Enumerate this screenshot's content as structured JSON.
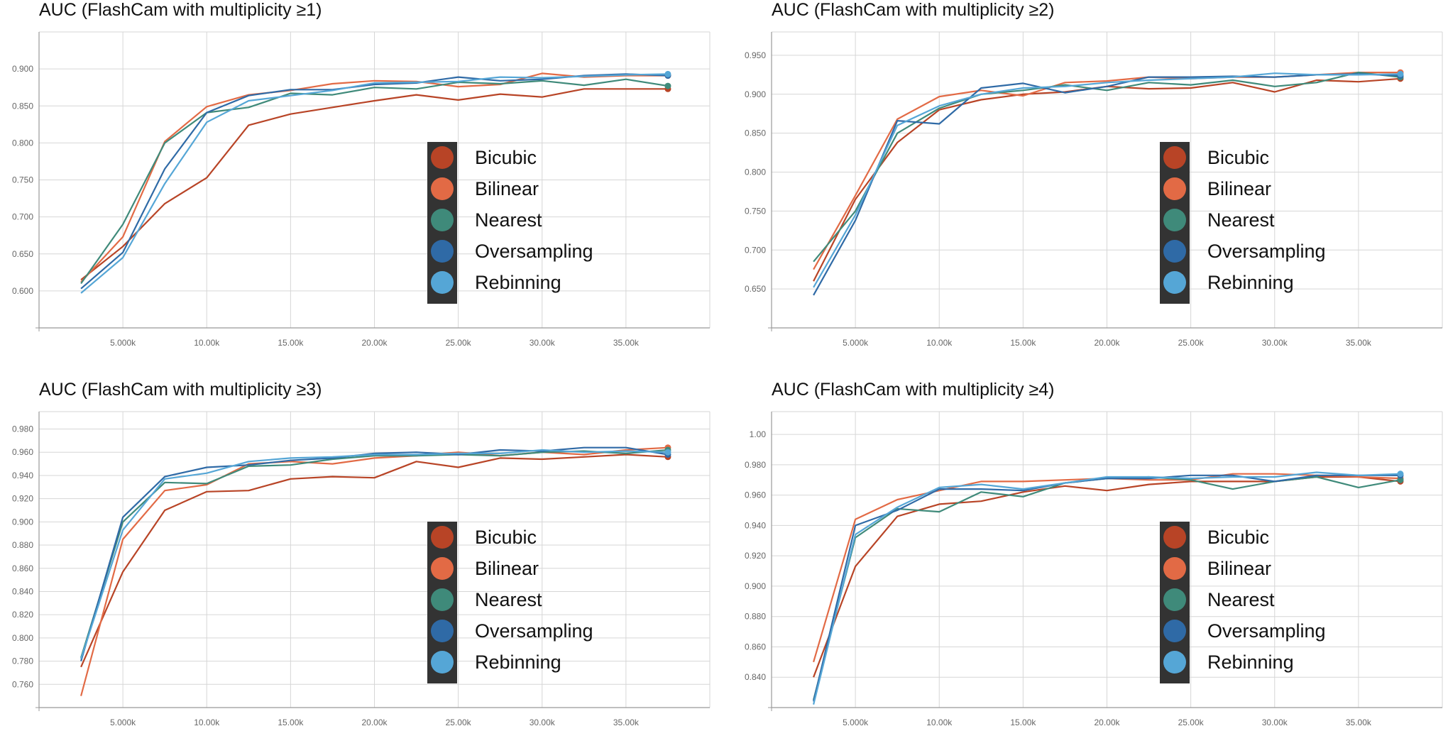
{
  "colors": {
    "Bicubic": "#b84426",
    "Bilinear": "#e26a45",
    "Nearest": "#3f8a7a",
    "Oversampling": "#2f6aa6",
    "Rebinning": "#55a6d6",
    "grid": "#d6d6d6",
    "legend_bg": "#333333"
  },
  "chart_data": [
    {
      "type": "line",
      "title": "AUC (FlashCam with multiplicity ≥1)",
      "xlabel": "",
      "ylabel": "",
      "x": [
        2500,
        5000,
        7500,
        10000,
        12500,
        15000,
        17500,
        20000,
        22500,
        25000,
        27500,
        30000,
        32500,
        35000,
        37500
      ],
      "xlim": [
        0,
        40000
      ],
      "ylim": [
        0.55,
        0.95
      ],
      "x_ticks": [
        5000,
        10000,
        15000,
        20000,
        25000,
        30000,
        35000
      ],
      "x_tick_labels": [
        "5.000k",
        "10.00k",
        "15.00k",
        "20.00k",
        "25.00k",
        "30.00k",
        "35.00k"
      ],
      "y_ticks": [
        0.6,
        0.65,
        0.7,
        0.75,
        0.8,
        0.85,
        0.9
      ],
      "y_tick_labels": [
        "0.600",
        "0.650",
        "0.700",
        "0.750",
        "0.800",
        "0.850",
        "0.900"
      ],
      "grid": true,
      "legend": "center-right",
      "series": [
        {
          "name": "Bicubic",
          "values": [
            0.615,
            0.66,
            0.718,
            0.753,
            0.824,
            0.839,
            0.848,
            0.857,
            0.865,
            0.858,
            0.866,
            0.862,
            0.873,
            0.873,
            0.873
          ]
        },
        {
          "name": "Bilinear",
          "values": [
            0.612,
            0.673,
            0.802,
            0.849,
            0.865,
            0.871,
            0.88,
            0.884,
            0.883,
            0.876,
            0.879,
            0.894,
            0.889,
            0.891,
            0.891
          ]
        },
        {
          "name": "Nearest",
          "values": [
            0.61,
            0.69,
            0.8,
            0.841,
            0.848,
            0.867,
            0.865,
            0.875,
            0.873,
            0.882,
            0.88,
            0.884,
            0.878,
            0.886,
            0.877
          ]
        },
        {
          "name": "Oversampling",
          "values": [
            0.603,
            0.652,
            0.765,
            0.841,
            0.864,
            0.872,
            0.872,
            0.879,
            0.881,
            0.889,
            0.884,
            0.886,
            0.891,
            0.893,
            0.891
          ]
        },
        {
          "name": "Rebinning",
          "values": [
            0.597,
            0.645,
            0.745,
            0.828,
            0.857,
            0.864,
            0.871,
            0.881,
            0.882,
            0.883,
            0.889,
            0.888,
            0.89,
            0.892,
            0.893
          ]
        }
      ]
    },
    {
      "type": "line",
      "title": "AUC (FlashCam with multiplicity ≥2)",
      "xlabel": "",
      "ylabel": "",
      "x": [
        2500,
        5000,
        7500,
        10000,
        12500,
        15000,
        17500,
        20000,
        22500,
        25000,
        27500,
        30000,
        32500,
        35000,
        37500
      ],
      "xlim": [
        0,
        40000
      ],
      "ylim": [
        0.6,
        0.98
      ],
      "x_ticks": [
        5000,
        10000,
        15000,
        20000,
        25000,
        30000,
        35000
      ],
      "x_tick_labels": [
        "5.000k",
        "10.00k",
        "15.00k",
        "20.00k",
        "25.00k",
        "30.00k",
        "35.00k"
      ],
      "y_ticks": [
        0.65,
        0.7,
        0.75,
        0.8,
        0.85,
        0.9,
        0.95
      ],
      "y_tick_labels": [
        "0.650",
        "0.700",
        "0.750",
        "0.800",
        "0.850",
        "0.900",
        "0.950"
      ],
      "grid": true,
      "legend": "center-right",
      "series": [
        {
          "name": "Bicubic",
          "values": [
            0.66,
            0.765,
            0.838,
            0.88,
            0.893,
            0.9,
            0.903,
            0.91,
            0.907,
            0.908,
            0.915,
            0.903,
            0.918,
            0.916,
            0.92
          ]
        },
        {
          "name": "Bilinear",
          "values": [
            0.675,
            0.77,
            0.868,
            0.897,
            0.905,
            0.898,
            0.915,
            0.917,
            0.922,
            0.92,
            0.922,
            0.922,
            0.925,
            0.928,
            0.928
          ]
        },
        {
          "name": "Nearest",
          "values": [
            0.685,
            0.75,
            0.85,
            0.882,
            0.9,
            0.905,
            0.912,
            0.905,
            0.915,
            0.912,
            0.918,
            0.91,
            0.915,
            0.928,
            0.922
          ]
        },
        {
          "name": "Oversampling",
          "values": [
            0.642,
            0.738,
            0.866,
            0.862,
            0.908,
            0.914,
            0.902,
            0.91,
            0.922,
            0.922,
            0.923,
            0.922,
            0.925,
            0.926,
            0.924
          ]
        },
        {
          "name": "Rebinning",
          "values": [
            0.652,
            0.745,
            0.86,
            0.885,
            0.9,
            0.908,
            0.91,
            0.915,
            0.918,
            0.92,
            0.922,
            0.927,
            0.925,
            0.925,
            0.926
          ]
        }
      ]
    },
    {
      "type": "line",
      "title": "AUC (FlashCam with multiplicity ≥3)",
      "xlabel": "",
      "ylabel": "",
      "x": [
        2500,
        5000,
        7500,
        10000,
        12500,
        15000,
        17500,
        20000,
        22500,
        25000,
        27500,
        30000,
        32500,
        35000,
        37500
      ],
      "xlim": [
        0,
        40000
      ],
      "ylim": [
        0.74,
        0.995
      ],
      "x_ticks": [
        5000,
        10000,
        15000,
        20000,
        25000,
        30000,
        35000
      ],
      "x_tick_labels": [
        "5.000k",
        "10.00k",
        "15.00k",
        "20.00k",
        "25.00k",
        "30.00k",
        "35.00k"
      ],
      "y_ticks": [
        0.76,
        0.78,
        0.8,
        0.82,
        0.84,
        0.86,
        0.88,
        0.9,
        0.92,
        0.94,
        0.96,
        0.98
      ],
      "y_tick_labels": [
        "0.760",
        "0.780",
        "0.800",
        "0.820",
        "0.840",
        "0.860",
        "0.880",
        "0.900",
        "0.920",
        "0.940",
        "0.960",
        "0.980"
      ],
      "grid": true,
      "legend": "center-right",
      "series": [
        {
          "name": "Bicubic",
          "values": [
            0.775,
            0.857,
            0.91,
            0.926,
            0.927,
            0.937,
            0.939,
            0.938,
            0.952,
            0.947,
            0.955,
            0.954,
            0.956,
            0.958,
            0.956
          ]
        },
        {
          "name": "Bilinear",
          "values": [
            0.75,
            0.885,
            0.927,
            0.932,
            0.95,
            0.952,
            0.95,
            0.955,
            0.957,
            0.96,
            0.957,
            0.96,
            0.958,
            0.962,
            0.964
          ]
        },
        {
          "name": "Nearest",
          "values": [
            0.783,
            0.9,
            0.934,
            0.933,
            0.948,
            0.949,
            0.954,
            0.957,
            0.957,
            0.958,
            0.957,
            0.96,
            0.961,
            0.959,
            0.962
          ]
        },
        {
          "name": "Oversampling",
          "values": [
            0.78,
            0.904,
            0.939,
            0.947,
            0.949,
            0.953,
            0.955,
            0.959,
            0.96,
            0.958,
            0.962,
            0.961,
            0.964,
            0.964,
            0.958
          ]
        },
        {
          "name": "Rebinning",
          "values": [
            0.782,
            0.893,
            0.937,
            0.942,
            0.952,
            0.955,
            0.956,
            0.958,
            0.958,
            0.959,
            0.959,
            0.962,
            0.96,
            0.961,
            0.96
          ]
        }
      ]
    },
    {
      "type": "line",
      "title": "AUC (FlashCam with multiplicity ≥4)",
      "xlabel": "",
      "ylabel": "",
      "x": [
        2500,
        5000,
        7500,
        10000,
        12500,
        15000,
        17500,
        20000,
        22500,
        25000,
        27500,
        30000,
        32500,
        35000,
        37500
      ],
      "xlim": [
        0,
        40000
      ],
      "ylim": [
        0.82,
        1.015
      ],
      "x_ticks": [
        5000,
        10000,
        15000,
        20000,
        25000,
        30000,
        35000
      ],
      "x_tick_labels": [
        "5.000k",
        "10.00k",
        "15.00k",
        "20.00k",
        "25.00k",
        "30.00k",
        "35.00k"
      ],
      "y_ticks": [
        0.84,
        0.86,
        0.88,
        0.9,
        0.92,
        0.94,
        0.96,
        0.98,
        1.0
      ],
      "y_tick_labels": [
        "0.840",
        "0.860",
        "0.880",
        "0.900",
        "0.920",
        "0.940",
        "0.960",
        "0.980",
        "1.00"
      ],
      "grid": true,
      "legend": "center-right",
      "series": [
        {
          "name": "Bicubic",
          "values": [
            0.84,
            0.913,
            0.946,
            0.954,
            0.956,
            0.962,
            0.966,
            0.963,
            0.967,
            0.969,
            0.969,
            0.969,
            0.972,
            0.972,
            0.969
          ]
        },
        {
          "name": "Bilinear",
          "values": [
            0.85,
            0.944,
            0.957,
            0.963,
            0.969,
            0.969,
            0.97,
            0.971,
            0.97,
            0.97,
            0.974,
            0.974,
            0.973,
            0.972,
            0.971
          ]
        },
        {
          "name": "Nearest",
          "values": [
            0.825,
            0.932,
            0.951,
            0.949,
            0.962,
            0.959,
            0.968,
            0.971,
            0.972,
            0.97,
            0.964,
            0.969,
            0.972,
            0.965,
            0.97
          ]
        },
        {
          "name": "Oversampling",
          "values": [
            0.824,
            0.94,
            0.95,
            0.964,
            0.964,
            0.963,
            0.968,
            0.971,
            0.971,
            0.973,
            0.973,
            0.969,
            0.973,
            0.973,
            0.973
          ]
        },
        {
          "name": "Rebinning",
          "values": [
            0.822,
            0.934,
            0.952,
            0.965,
            0.967,
            0.964,
            0.968,
            0.972,
            0.972,
            0.971,
            0.972,
            0.972,
            0.975,
            0.973,
            0.974
          ]
        }
      ]
    }
  ]
}
